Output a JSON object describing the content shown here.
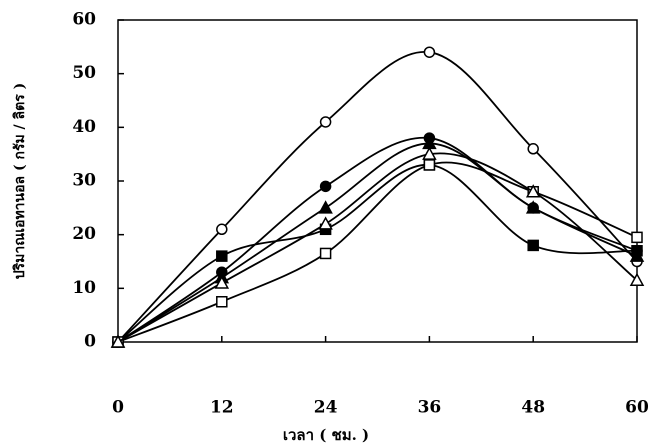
{
  "chart_data": {
    "type": "line",
    "x_label": "เวลา ( ชม. )",
    "y_label": "ปริมาณเอทานอล ( กรัม / ลิตร )",
    "x": [
      0,
      12,
      24,
      36,
      48,
      60
    ],
    "xlim": [
      0,
      60
    ],
    "xticks": [
      0,
      12,
      24,
      36,
      48,
      60
    ],
    "ylim": [
      0,
      60
    ],
    "yticks": [
      0,
      10,
      20,
      30,
      40,
      50,
      60
    ],
    "smooth": true,
    "series": [
      {
        "color": "#000000",
        "marker": "circle-open",
        "values": [
          0,
          21,
          41,
          54,
          36,
          15
        ]
      },
      {
        "color": "#000000",
        "marker": "circle-filled",
        "values": [
          0,
          13,
          29,
          38,
          25,
          17
        ]
      },
      {
        "color": "#000000",
        "marker": "triangle-filled",
        "values": [
          0,
          12,
          25,
          37,
          25,
          16
        ]
      },
      {
        "color": "#000000",
        "marker": "square-filled",
        "values": [
          0,
          16,
          21,
          33,
          18,
          17
        ]
      },
      {
        "color": "#000000",
        "marker": "square-open",
        "values": [
          0,
          7.5,
          16.5,
          33,
          28,
          19.5
        ]
      },
      {
        "color": "#000000",
        "marker": "triangle-open",
        "values": [
          0,
          11,
          22,
          35,
          28,
          11.5
        ]
      }
    ]
  }
}
